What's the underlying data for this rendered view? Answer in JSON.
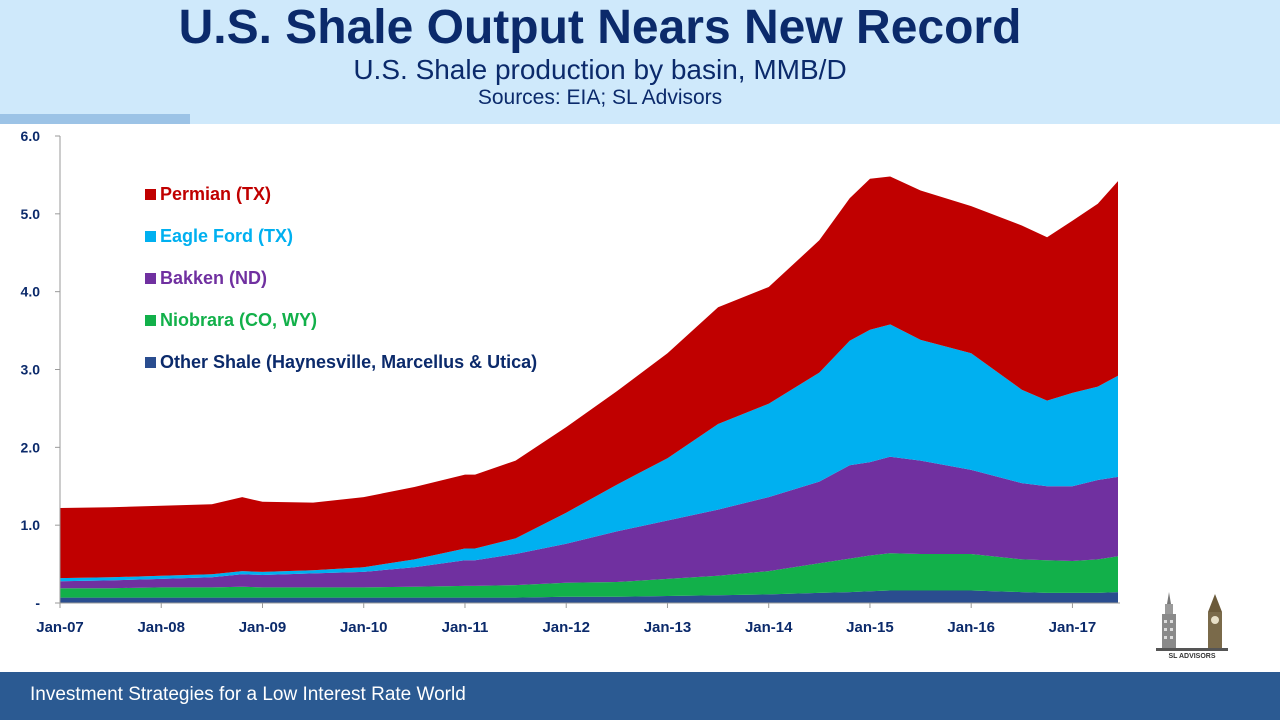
{
  "header": {
    "title": "U.S. Shale Output Nears New Record",
    "subtitle": "U.S. Shale production by basin, MMB/D",
    "sources": "Sources: EIA; SL Advisors"
  },
  "footer": {
    "text": "Investment Strategies for a Low Interest Rate World"
  },
  "logo": {
    "text": "SL ADVISORS"
  },
  "colors": {
    "header_bg": "#cfe9fb",
    "footer_bg": "#2b5a92",
    "title": "#0b2a6b"
  },
  "chart_data": {
    "type": "area",
    "stacked": true,
    "x_start": "2007-01",
    "x_end": "2017-06",
    "x": [
      2007.0,
      2007.5,
      2008.0,
      2008.5,
      2008.8,
      2009.0,
      2009.5,
      2010.0,
      2010.5,
      2011.0,
      2011.1,
      2011.5,
      2012.0,
      2012.5,
      2013.0,
      2013.5,
      2014.0,
      2014.5,
      2014.8,
      2015.0,
      2015.2,
      2015.5,
      2016.0,
      2016.5,
      2016.75,
      2017.0,
      2017.25,
      2017.45
    ],
    "xtick_labels": [
      "Jan-07",
      "Jan-08",
      "Jan-09",
      "Jan-10",
      "Jan-11",
      "Jan-12",
      "Jan-13",
      "Jan-14",
      "Jan-15",
      "Jan-16",
      "Jan-17"
    ],
    "xticks": [
      2007,
      2008,
      2009,
      2010,
      2011,
      2012,
      2013,
      2014,
      2015,
      2016,
      2017
    ],
    "ylim": [
      0,
      6
    ],
    "yticks": [
      0,
      1,
      2,
      3,
      4,
      5,
      6
    ],
    "ytick_labels": [
      "-",
      "1.0",
      "2.0",
      "3.0",
      "4.0",
      "5.0",
      "6.0"
    ],
    "legend_position": "top-left",
    "series": [
      {
        "name": "Other Shale (Haynesville, Marcellus & Utica)",
        "color": "#2a4d8f",
        "values": [
          0.07,
          0.07,
          0.07,
          0.07,
          0.07,
          0.07,
          0.07,
          0.07,
          0.07,
          0.07,
          0.07,
          0.07,
          0.08,
          0.08,
          0.09,
          0.1,
          0.11,
          0.13,
          0.14,
          0.15,
          0.16,
          0.16,
          0.16,
          0.14,
          0.13,
          0.13,
          0.13,
          0.14
        ]
      },
      {
        "name": "Niobrara (CO, WY)",
        "color": "#12b04a",
        "values": [
          0.12,
          0.12,
          0.13,
          0.13,
          0.14,
          0.13,
          0.13,
          0.13,
          0.14,
          0.15,
          0.15,
          0.16,
          0.18,
          0.19,
          0.22,
          0.25,
          0.3,
          0.38,
          0.43,
          0.46,
          0.48,
          0.47,
          0.47,
          0.42,
          0.42,
          0.41,
          0.43,
          0.46
        ]
      },
      {
        "name": "Bakken (ND)",
        "color": "#7030a0",
        "values": [
          0.09,
          0.1,
          0.11,
          0.13,
          0.16,
          0.16,
          0.18,
          0.2,
          0.25,
          0.33,
          0.33,
          0.4,
          0.5,
          0.65,
          0.75,
          0.85,
          0.95,
          1.05,
          1.2,
          1.2,
          1.24,
          1.2,
          1.08,
          0.98,
          0.95,
          0.96,
          1.02,
          1.02
        ]
      },
      {
        "name": "Eagle Ford (TX)",
        "color": "#00b0f0",
        "values": [
          0.04,
          0.04,
          0.04,
          0.04,
          0.04,
          0.04,
          0.04,
          0.06,
          0.1,
          0.15,
          0.15,
          0.2,
          0.4,
          0.6,
          0.8,
          1.1,
          1.2,
          1.4,
          1.6,
          1.7,
          1.7,
          1.55,
          1.5,
          1.2,
          1.1,
          1.2,
          1.2,
          1.3
        ]
      },
      {
        "name": "Permian (TX)",
        "color": "#c00000",
        "values": [
          0.9,
          0.9,
          0.9,
          0.9,
          0.95,
          0.9,
          0.87,
          0.9,
          0.93,
          0.95,
          0.95,
          1.0,
          1.1,
          1.2,
          1.35,
          1.5,
          1.5,
          1.7,
          1.83,
          1.94,
          1.9,
          1.92,
          1.89,
          2.11,
          2.1,
          2.21,
          2.35,
          2.5
        ]
      }
    ]
  }
}
